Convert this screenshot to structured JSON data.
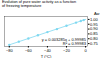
{
  "chart_data": {
    "type": "scatter",
    "title": "Evolution of pure water activity as a function\nof freezing temperature",
    "xlabel": "T (°C)",
    "ylabel": "Aw",
    "annotation": "y = 0.003285x + 0.99985\nR² = 0.99983",
    "series": [
      {
        "type": "line",
        "color": "#7fd8f0",
        "x": [
          -80,
          0
        ],
        "values": [
          0.737,
          0.99985
        ]
      },
      {
        "type": "scatter",
        "color": "#7fd8f0",
        "x": [
          -80,
          -70,
          -60,
          -50,
          -40,
          -30,
          -20,
          -10,
          -5,
          -2
        ],
        "values": [
          0.737,
          0.77,
          0.803,
          0.836,
          0.869,
          0.9,
          0.935,
          0.967,
          0.984,
          0.993
        ]
      }
    ],
    "xlim": [
      -85,
      2
    ],
    "ylim": [
      0.72,
      1.03
    ],
    "xticks": [
      -80,
      -60,
      -40,
      -20,
      0
    ],
    "yticks": [
      0.75,
      {
        "value": 0.8,
        "label": "0.80"
      },
      0.85,
      {
        "value": 0.9,
        "label": "0.90"
      },
      0.95,
      {
        "value": 1.0,
        "label": "1.00"
      }
    ]
  }
}
